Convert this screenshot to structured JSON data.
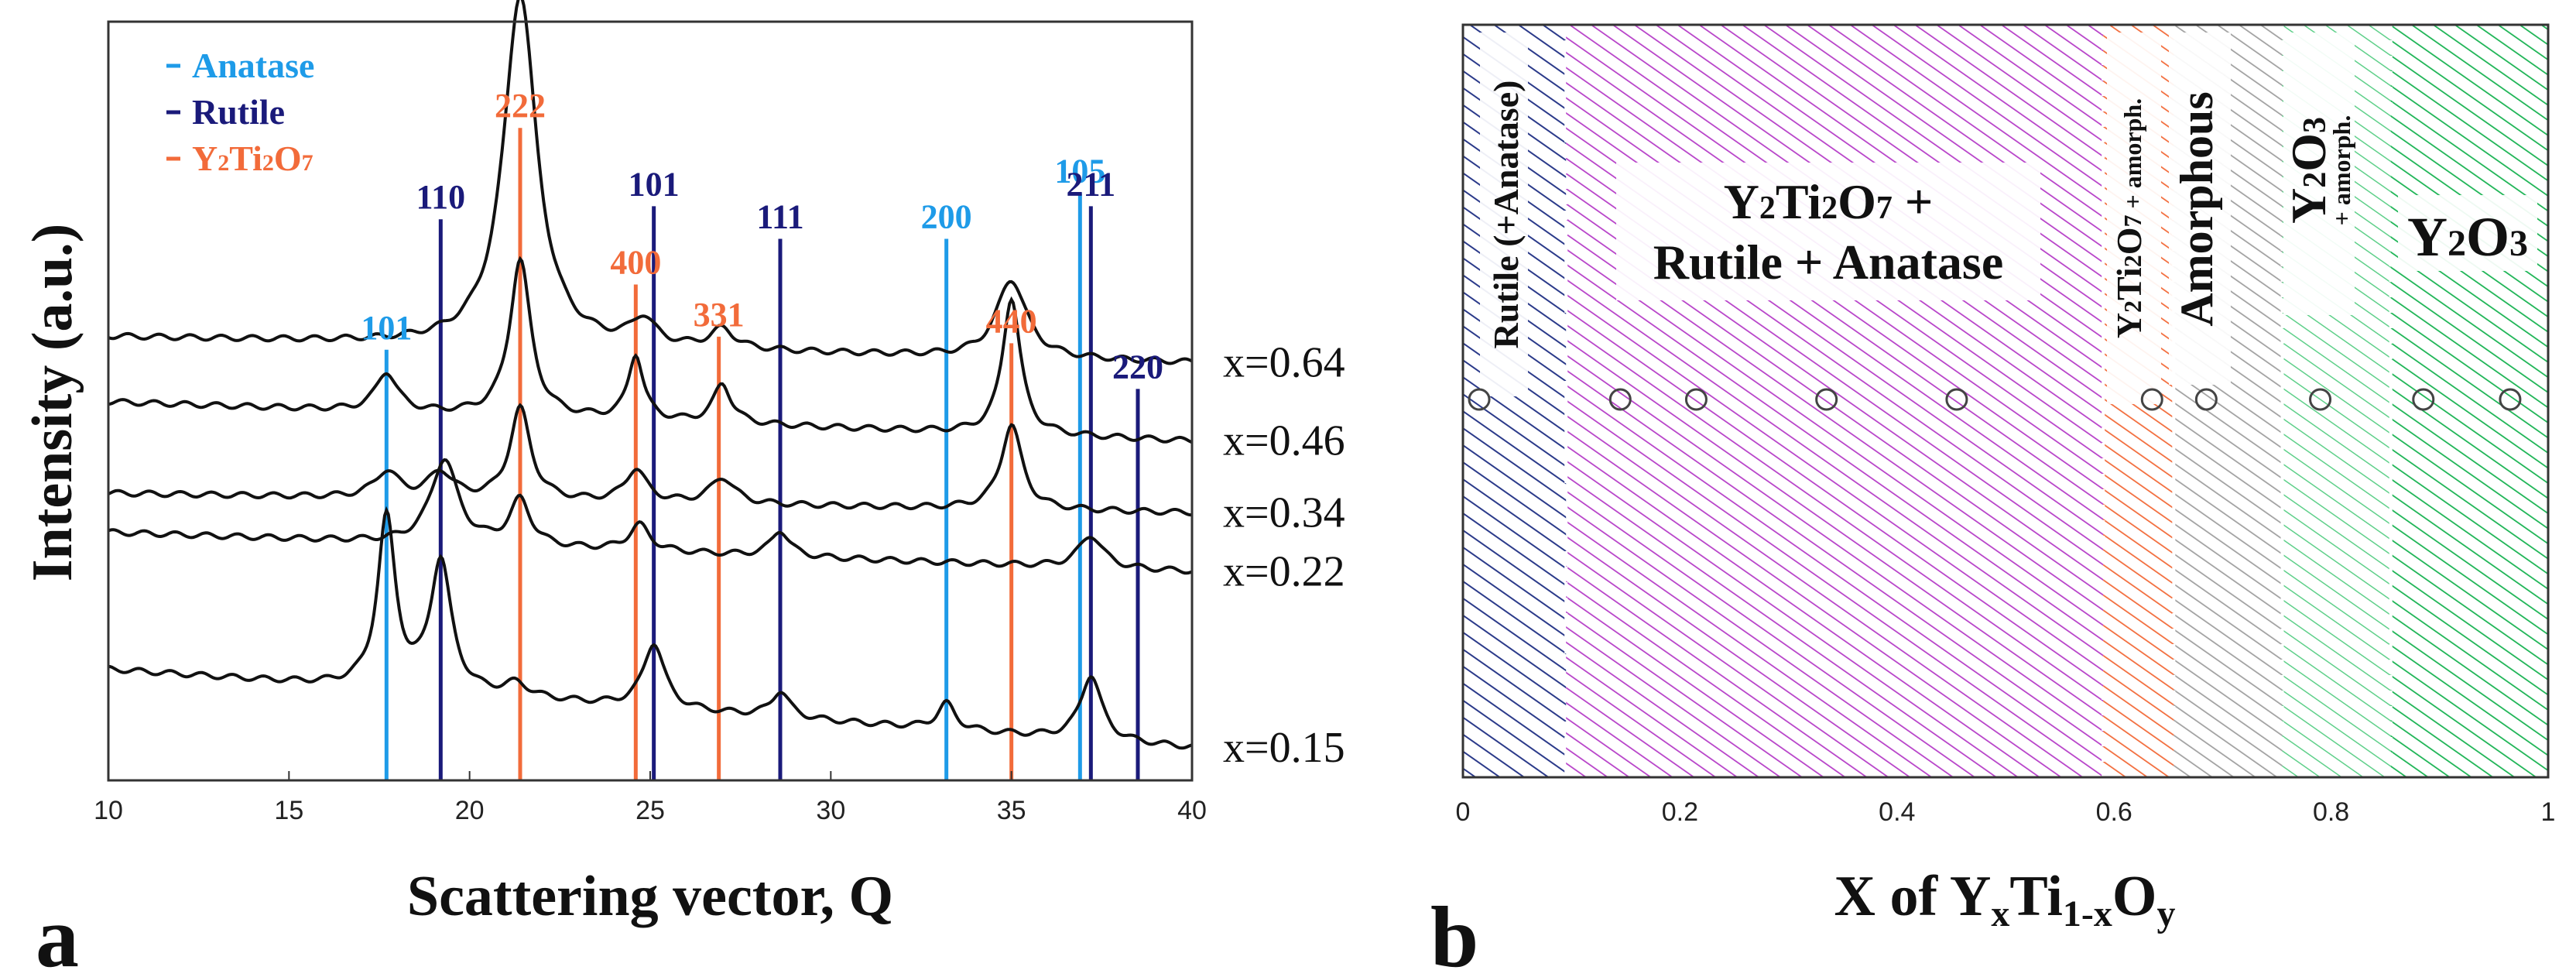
{
  "chart_data": [
    {
      "panel": "a",
      "type": "line",
      "xlabel": "Scattering vector, Q",
      "ylabel": "Intensity (a.u.)",
      "xlim": [
        10,
        40
      ],
      "xticks": [
        10,
        15,
        20,
        25,
        30,
        35,
        40
      ],
      "legend": {
        "placement": "top-left",
        "entries": [
          {
            "name": "Anatase",
            "color": "#1e9be8"
          },
          {
            "name": "Rutile",
            "color": "#1a1a7a"
          },
          {
            "name": "Y2Ti2O7",
            "color": "#f26b3a"
          }
        ]
      },
      "reference_lines": [
        {
          "phase": "Anatase",
          "label": "101",
          "q": 17.7,
          "height": 0.66
        },
        {
          "phase": "Rutile",
          "label": "110",
          "q": 19.2,
          "height": 0.86
        },
        {
          "phase": "Y2Ti2O7",
          "label": "222",
          "q": 21.4,
          "height": 1.0
        },
        {
          "phase": "Y2Ti2O7",
          "label": "400",
          "q": 24.6,
          "height": 0.76
        },
        {
          "phase": "Rutile",
          "label": "101",
          "q": 25.1,
          "height": 0.88
        },
        {
          "phase": "Y2Ti2O7",
          "label": "331",
          "q": 26.9,
          "height": 0.68
        },
        {
          "phase": "Rutile",
          "label": "111",
          "q": 28.6,
          "height": 0.83
        },
        {
          "phase": "Anatase",
          "label": "200",
          "q": 33.2,
          "height": 0.83
        },
        {
          "phase": "Y2Ti2O7",
          "label": "440",
          "q": 35.0,
          "height": 0.67
        },
        {
          "phase": "Anatase",
          "label": "105",
          "q": 36.9,
          "height": 0.9
        },
        {
          "phase": "Rutile",
          "label": "211",
          "q": 37.2,
          "height": 0.88
        },
        {
          "phase": "Rutile",
          "label": "220",
          "q": 38.5,
          "height": 0.6
        }
      ],
      "series": [
        {
          "name": "x=0.64",
          "baseline": 0.68,
          "slope": 0.04,
          "peaks": [
            [
              21.4,
              0.54,
              0.55
            ],
            [
              24.8,
              0.04,
              0.4
            ],
            [
              27.0,
              0.03,
              0.4
            ],
            [
              35.0,
              0.12,
              0.5
            ]
          ]
        },
        {
          "name": "x=0.46",
          "baseline": 0.58,
          "slope": 0.06,
          "peaks": [
            [
              17.7,
              0.06,
              0.35
            ],
            [
              21.4,
              0.24,
              0.35
            ],
            [
              24.6,
              0.1,
              0.25
            ],
            [
              27.0,
              0.06,
              0.3
            ],
            [
              35.0,
              0.21,
              0.3
            ]
          ]
        },
        {
          "name": "x=0.34",
          "baseline": 0.44,
          "slope": 0.03,
          "peaks": [
            [
              17.7,
              0.04,
              0.4
            ],
            [
              19.2,
              0.04,
              0.4
            ],
            [
              21.4,
              0.14,
              0.35
            ],
            [
              24.6,
              0.05,
              0.35
            ],
            [
              27.0,
              0.04,
              0.4
            ],
            [
              35.0,
              0.13,
              0.35
            ]
          ]
        },
        {
          "name": "x=0.22",
          "baseline": 0.38,
          "slope": 0.06,
          "peaks": [
            [
              19.3,
              0.13,
              0.45
            ],
            [
              21.4,
              0.07,
              0.35
            ],
            [
              24.7,
              0.04,
              0.35
            ],
            [
              28.6,
              0.04,
              0.3
            ],
            [
              37.2,
              0.05,
              0.4
            ]
          ]
        },
        {
          "name": "x=0.15",
          "baseline": 0.17,
          "slope": 0.12,
          "peaks": [
            [
              17.7,
              0.26,
              0.3
            ],
            [
              19.2,
              0.2,
              0.35
            ],
            [
              21.3,
              0.02,
              0.4
            ],
            [
              25.1,
              0.1,
              0.35
            ],
            [
              28.6,
              0.04,
              0.3
            ],
            [
              33.2,
              0.04,
              0.3
            ],
            [
              37.2,
              0.1,
              0.35
            ]
          ]
        }
      ]
    },
    {
      "panel": "b",
      "type": "phase-diagram",
      "xlabel": "X of YxTi1-xOy",
      "xlim": [
        0,
        1
      ],
      "xticks": [
        0,
        0.2,
        0.4,
        0.6,
        0.8,
        1
      ],
      "regions": [
        {
          "from": 0.0,
          "to": 0.095,
          "color": "#2b3a8a",
          "label": "Rutile (+Anatase)"
        },
        {
          "from": 0.095,
          "to": 0.59,
          "color": "#b63fc8",
          "label": "Y2Ti2O7 + Rutile + Anatase"
        },
        {
          "from": 0.59,
          "to": 0.655,
          "color": "#f26b3a",
          "label": "Y2Ti2O7 + amorph."
        },
        {
          "from": 0.655,
          "to": 0.755,
          "color": "#a0a0a0",
          "label": "Amorphous"
        },
        {
          "from": 0.755,
          "to": 0.855,
          "color": "#5fd08a",
          "label": "Y2O3 + amorph."
        },
        {
          "from": 0.855,
          "to": 1.0,
          "color": "#19b352",
          "label": "Y2O3"
        }
      ],
      "sample_points": [
        0.015,
        0.145,
        0.215,
        0.335,
        0.455,
        0.635,
        0.685,
        0.79,
        0.885,
        0.965
      ]
    }
  ],
  "panel_letters": {
    "a": "a",
    "b": "b"
  },
  "labels_a": {
    "xlabel": "Scattering vector, Q",
    "ylabel": "Intensity (a.u.)",
    "legend_anatase": "Anatase",
    "legend_rutile": "Rutile",
    "legend_y2ti2o7_main": "Y",
    "legend_y2ti2o7_sub1": "2",
    "legend_y2ti2o7_mid": "Ti",
    "legend_y2ti2o7_sub2": "2",
    "legend_y2ti2o7_end": "O",
    "legend_y2ti2o7_sub3": "7",
    "series": [
      "x=0.64",
      "x=0.46",
      "x=0.34",
      "x=0.22",
      "x=0.15"
    ],
    "ticks": [
      "10",
      "15",
      "20",
      "25",
      "30",
      "35",
      "40"
    ]
  },
  "labels_b": {
    "xlabel_main": "X of Y",
    "xlabel_sub_x": "x",
    "xlabel_ti": "Ti",
    "xlabel_sub_1x": "1-x",
    "xlabel_o": "O",
    "xlabel_sub_y": "y",
    "ticks": [
      "0",
      "0.2",
      "0.4",
      "0.6",
      "0.8",
      "1"
    ],
    "rutile": "Rutile (+Anatase)",
    "mix_line1_y": "Y",
    "mix_line1_s1": "2",
    "mix_line1_ti": "Ti",
    "mix_line1_s2": "2",
    "mix_line1_o": "O",
    "mix_line1_s3": "7",
    "mix_line1_plus": " +",
    "mix_line2": "Rutile + Anatase",
    "y2ti2o7amorph_y": "Y",
    "y2ti2o7amorph_s1": "2",
    "y2ti2o7amorph_ti": "Ti",
    "y2ti2o7amorph_s2": "2",
    "y2ti2o7amorph_o": "O",
    "y2ti2o7amorph_s3": "7",
    "y2ti2o7amorph_tail": " + amorph.",
    "amorphous": "Amorphous",
    "y2o3_amorph_y": "Y",
    "y2o3_amorph_s1": "2",
    "y2o3_amorph_o": "O",
    "y2o3_amorph_s2": "3",
    "y2o3_amorph_tail": "+ amorph.",
    "y2o3_y": "Y",
    "y2o3_s1": "2",
    "y2o3_o": "O",
    "y2o3_s2": "3"
  }
}
